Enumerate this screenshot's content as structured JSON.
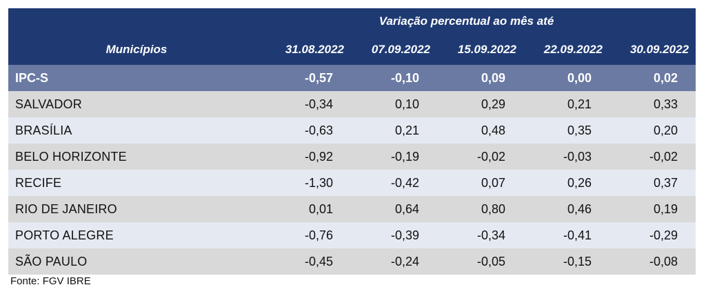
{
  "header": {
    "super_title": "Variação percentual ao mês até",
    "label_column": "Municípios",
    "dates": [
      "31.08.2022",
      "07.09.2022",
      "15.09.2022",
      "22.09.2022",
      "30.09.2022"
    ]
  },
  "summary_row": {
    "name": "IPC-S",
    "values": [
      "-0,57",
      "-0,10",
      "0,09",
      "0,00",
      "0,02"
    ]
  },
  "rows": [
    {
      "name": "SALVADOR",
      "values": [
        "-0,34",
        "0,10",
        "0,29",
        "0,21",
        "0,33"
      ]
    },
    {
      "name": "BRASÍLIA",
      "values": [
        "-0,63",
        "0,21",
        "0,48",
        "0,35",
        "0,20"
      ]
    },
    {
      "name": "BELO HORIZONTE",
      "values": [
        "-0,92",
        "-0,19",
        "-0,02",
        "-0,03",
        "-0,02"
      ]
    },
    {
      "name": "RECIFE",
      "values": [
        "-1,30",
        "-0,42",
        "0,07",
        "0,26",
        "0,37"
      ]
    },
    {
      "name": "RIO DE JANEIRO",
      "values": [
        "0,01",
        "0,64",
        "0,80",
        "0,46",
        "0,19"
      ]
    },
    {
      "name": "PORTO ALEGRE",
      "values": [
        "-0,76",
        "-0,39",
        "-0,34",
        "-0,41",
        "-0,29"
      ]
    },
    {
      "name": "SÃO PAULO",
      "values": [
        "-0,45",
        "-0,24",
        "-0,05",
        "-0,15",
        "-0,08"
      ]
    }
  ],
  "source": "Fonte: FGV IBRE",
  "colors": {
    "header_bg": "#1f3a73",
    "summary_bg": "#6a7aa3",
    "row_gray": "#d9d9d9",
    "row_blue": "#e5eaf2"
  }
}
